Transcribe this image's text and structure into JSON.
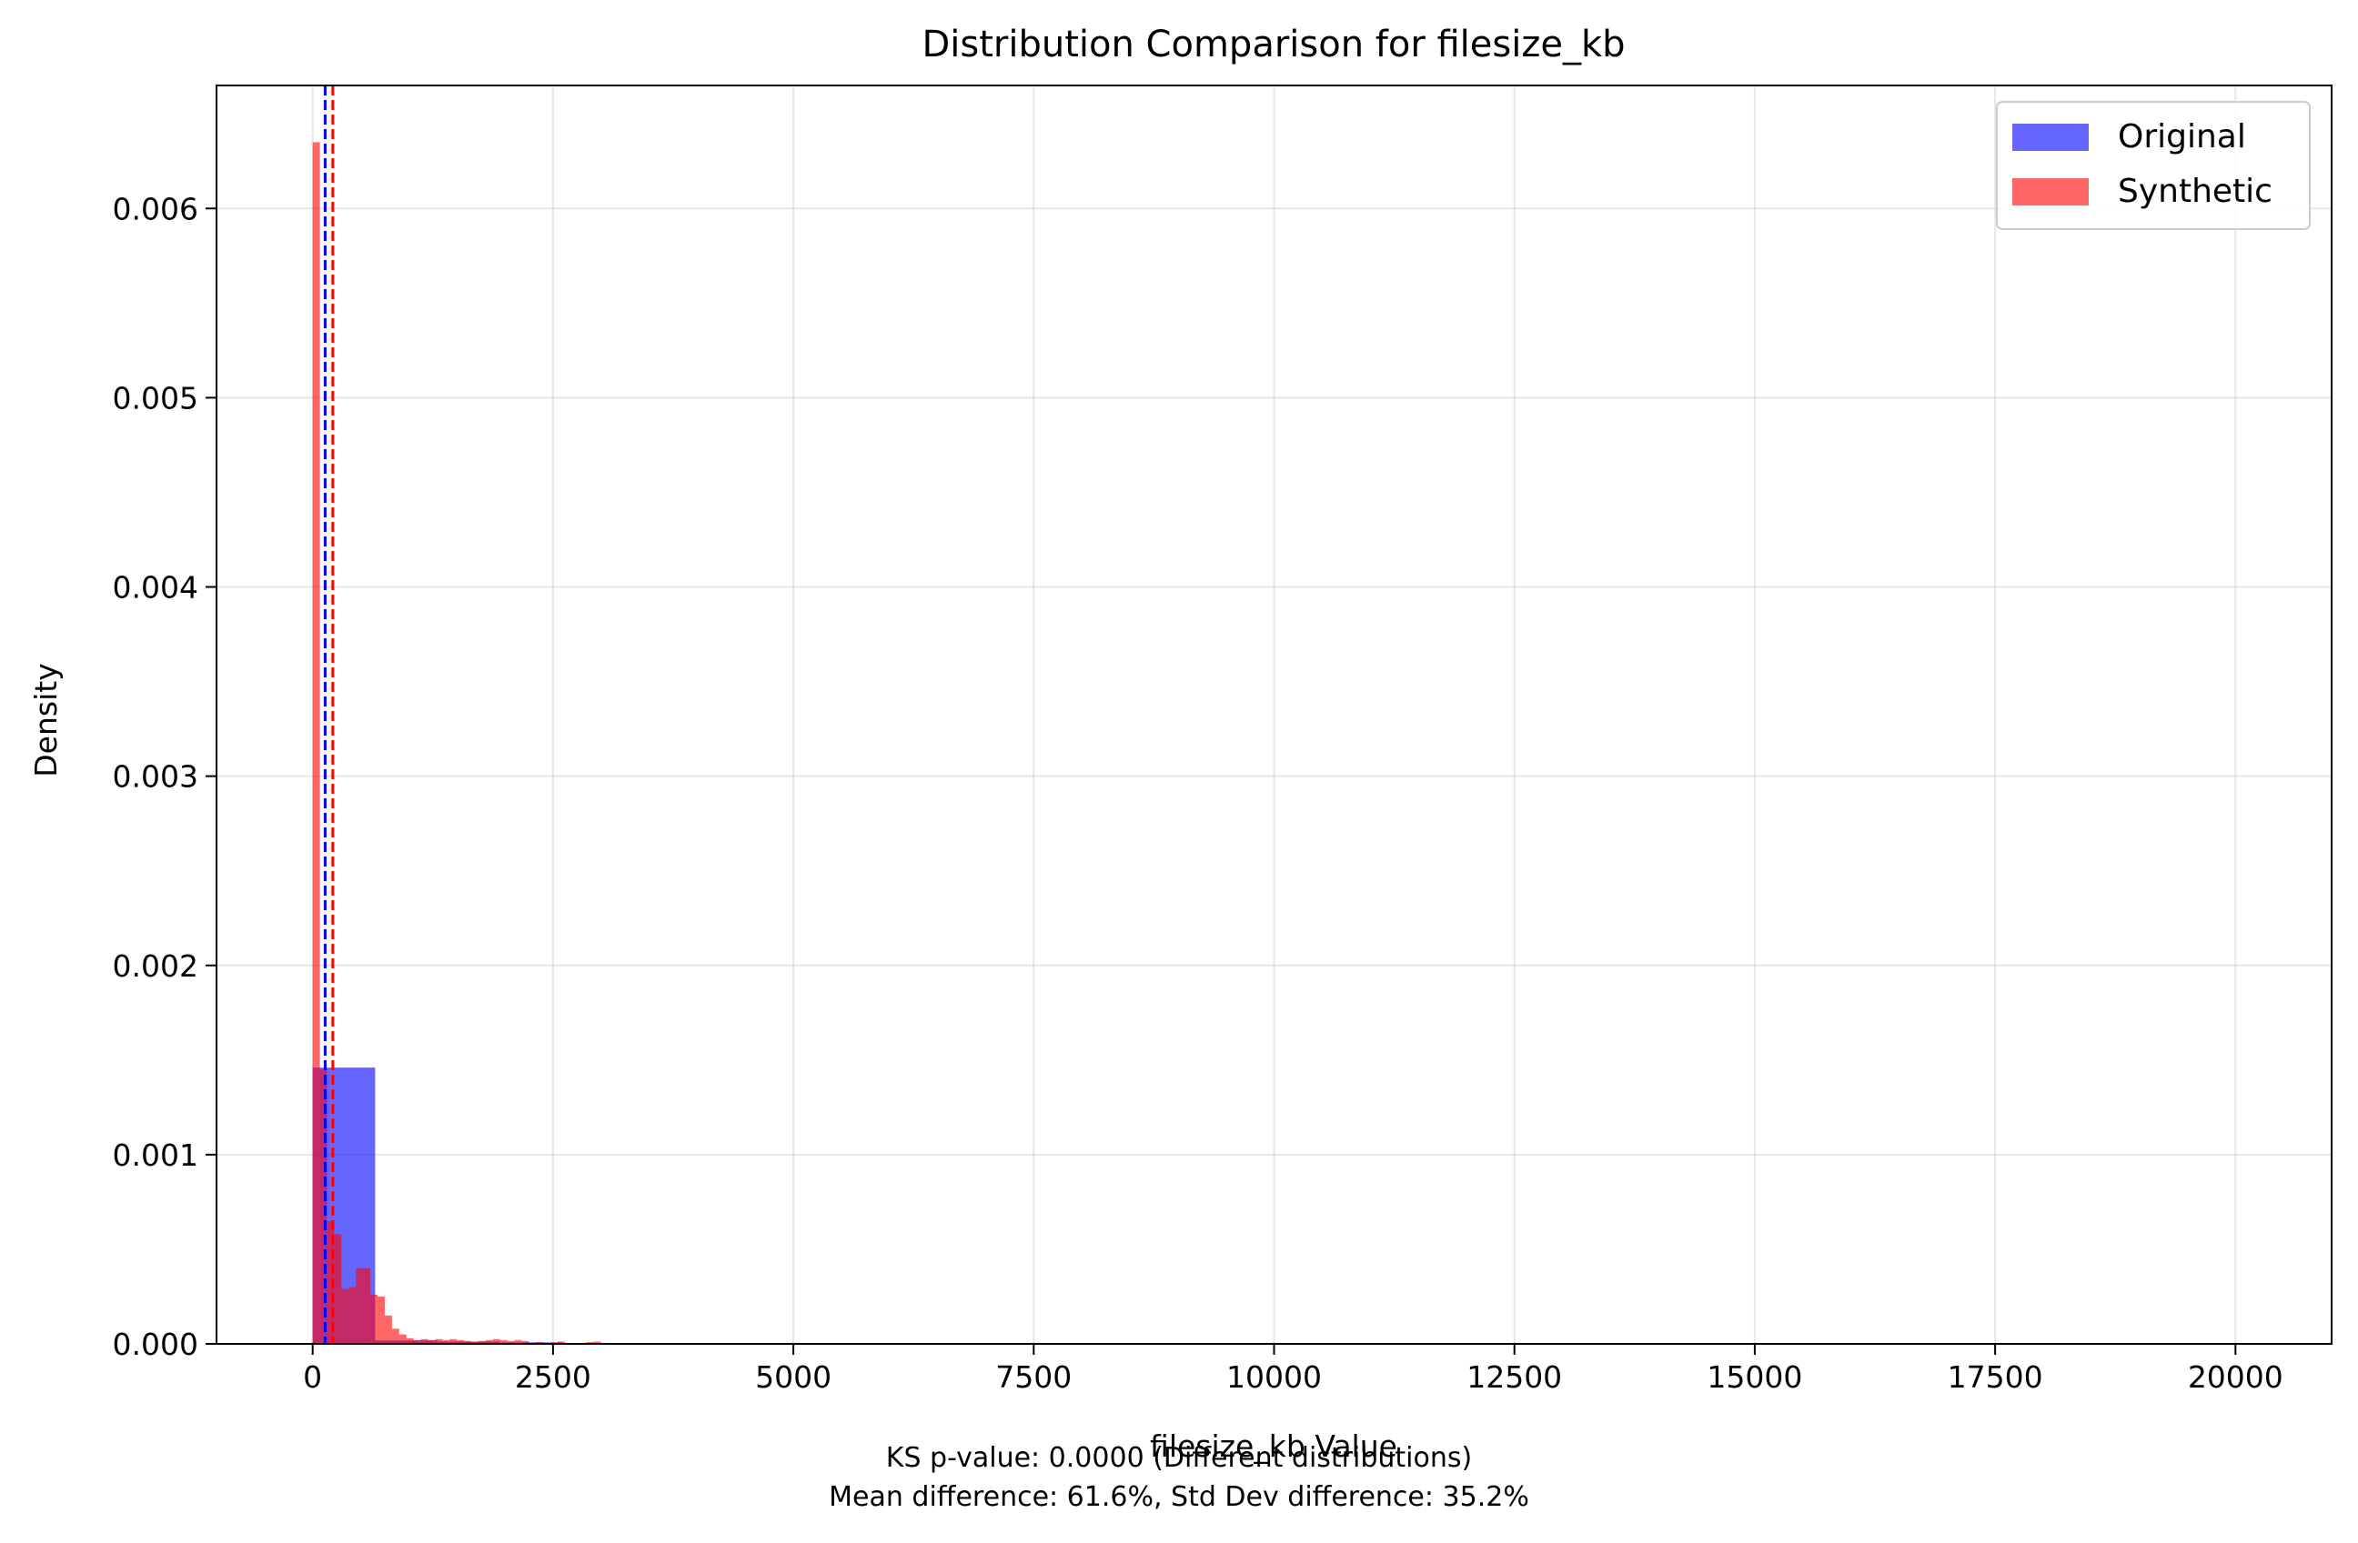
{
  "chart_data": {
    "type": "bar",
    "title": "Distribution Comparison for filesize_kb",
    "xlabel": "filesize_kb Value",
    "ylabel": "Density",
    "xlim": [
      -1000,
      21000
    ],
    "ylim": [
      0,
      0.00665
    ],
    "x_ticks": [
      0,
      2500,
      5000,
      7500,
      10000,
      12500,
      15000,
      17500,
      20000
    ],
    "x_tick_labels": [
      "0",
      "2500",
      "5000",
      "7500",
      "10000",
      "12500",
      "15000",
      "17500",
      "20000"
    ],
    "y_ticks": [
      0,
      0.001,
      0.002,
      0.003,
      0.004,
      0.005,
      0.006
    ],
    "y_tick_labels": [
      "0.000",
      "0.001",
      "0.002",
      "0.003",
      "0.004",
      "0.005",
      "0.006"
    ],
    "grid": true,
    "legend_position": "top-right",
    "series": [
      {
        "name": "Original",
        "color": "#0000ff",
        "opacity": 0.6,
        "bins": [
          {
            "x0": 0,
            "x1": 650,
            "value": 0.00146
          },
          {
            "x0": 650,
            "x1": 1300,
            "value": 1.8e-05
          },
          {
            "x0": 1300,
            "x1": 1950,
            "value": 1.2e-05
          },
          {
            "x0": 1950,
            "x1": 2600,
            "value": 8e-06
          }
        ],
        "mean_line": 130
      },
      {
        "name": "Synthetic",
        "color": "#ff0000",
        "opacity": 0.6,
        "bins": [
          {
            "x0": 0,
            "x1": 75,
            "value": 0.00635
          },
          {
            "x0": 75,
            "x1": 150,
            "value": 0.00145
          },
          {
            "x0": 150,
            "x1": 225,
            "value": 0.00065
          },
          {
            "x0": 225,
            "x1": 300,
            "value": 0.00058
          },
          {
            "x0": 300,
            "x1": 375,
            "value": 0.00029
          },
          {
            "x0": 375,
            "x1": 450,
            "value": 0.0003
          },
          {
            "x0": 450,
            "x1": 525,
            "value": 0.0004
          },
          {
            "x0": 525,
            "x1": 600,
            "value": 0.0004
          },
          {
            "x0": 600,
            "x1": 675,
            "value": 0.00026
          },
          {
            "x0": 675,
            "x1": 750,
            "value": 0.00025
          },
          {
            "x0": 750,
            "x1": 825,
            "value": 0.00015
          },
          {
            "x0": 825,
            "x1": 900,
            "value": 8e-05
          },
          {
            "x0": 900,
            "x1": 975,
            "value": 5e-05
          },
          {
            "x0": 975,
            "x1": 1050,
            "value": 3e-05
          },
          {
            "x0": 1050,
            "x1": 1125,
            "value": 2e-05
          },
          {
            "x0": 1125,
            "x1": 1200,
            "value": 2.5e-05
          },
          {
            "x0": 1200,
            "x1": 1275,
            "value": 2e-05
          },
          {
            "x0": 1275,
            "x1": 1350,
            "value": 2.5e-05
          },
          {
            "x0": 1350,
            "x1": 1425,
            "value": 2e-05
          },
          {
            "x0": 1425,
            "x1": 1500,
            "value": 2.5e-05
          },
          {
            "x0": 1500,
            "x1": 1575,
            "value": 2e-05
          },
          {
            "x0": 1575,
            "x1": 1650,
            "value": 1.5e-05
          },
          {
            "x0": 1650,
            "x1": 1725,
            "value": 1e-05
          },
          {
            "x0": 1725,
            "x1": 1800,
            "value": 1.5e-05
          },
          {
            "x0": 1800,
            "x1": 1875,
            "value": 2e-05
          },
          {
            "x0": 1875,
            "x1": 1950,
            "value": 2.5e-05
          },
          {
            "x0": 1950,
            "x1": 2025,
            "value": 2e-05
          },
          {
            "x0": 2025,
            "x1": 2100,
            "value": 1.5e-05
          },
          {
            "x0": 2100,
            "x1": 2175,
            "value": 2e-05
          },
          {
            "x0": 2175,
            "x1": 2250,
            "value": 1.5e-05
          },
          {
            "x0": 2250,
            "x1": 2325,
            "value": 5e-06
          },
          {
            "x0": 2325,
            "x1": 2400,
            "value": 1e-05
          },
          {
            "x0": 2400,
            "x1": 2475,
            "value": 5e-06
          },
          {
            "x0": 2475,
            "x1": 2550,
            "value": 8e-06
          },
          {
            "x0": 2550,
            "x1": 2625,
            "value": 1.2e-05
          },
          {
            "x0": 2625,
            "x1": 2700,
            "value": 5e-06
          },
          {
            "x0": 2700,
            "x1": 2775,
            "value": 3e-06
          },
          {
            "x0": 2775,
            "x1": 2850,
            "value": 5e-06
          },
          {
            "x0": 2850,
            "x1": 2925,
            "value": 1e-05
          },
          {
            "x0": 2925,
            "x1": 3000,
            "value": 1.2e-05
          }
        ],
        "mean_line": 210
      }
    ]
  },
  "footer": {
    "line1": "KS p-value: 0.0000 (Different distributions)",
    "line2": "Mean difference: 61.6%, Std Dev difference: 35.2%"
  }
}
